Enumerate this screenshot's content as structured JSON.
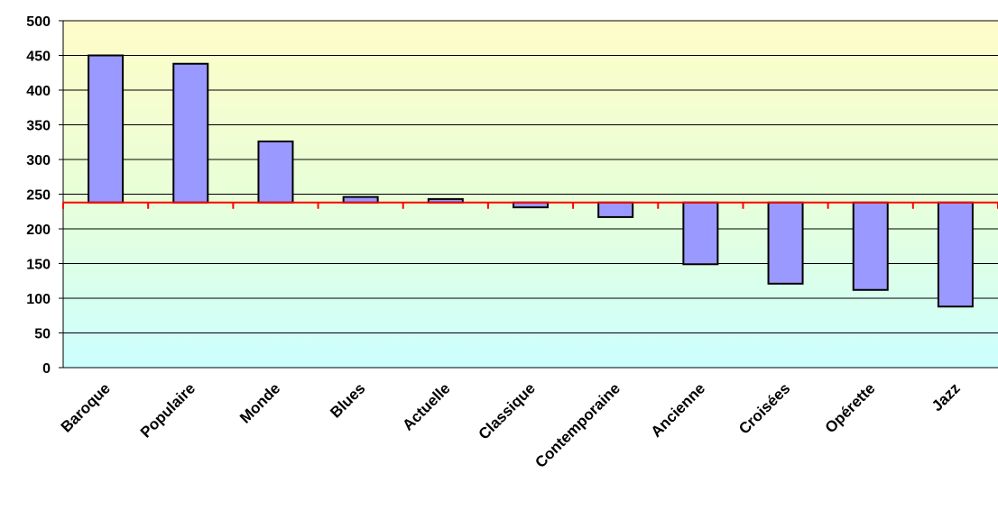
{
  "chart_data": {
    "type": "bar",
    "categories": [
      "Baroque",
      "Populaire",
      "Monde",
      "Blues",
      "Actuelle",
      "Classique",
      "Contemporaine",
      "Ancienne",
      "Croisées",
      "Opérette",
      "Jazz"
    ],
    "values": [
      450,
      438,
      326,
      246,
      243,
      231,
      217,
      149,
      121,
      112,
      88
    ],
    "baseline": 238,
    "ylim": [
      0,
      500
    ],
    "yticks": [
      0,
      50,
      100,
      150,
      200,
      250,
      300,
      350,
      400,
      450,
      500
    ],
    "title": "",
    "xlabel": "",
    "ylabel": "",
    "grid": true,
    "colors": {
      "bar_fill": "#9999ff",
      "bar_stroke": "#000000",
      "baseline": "#ff0000",
      "gradient_top": "#fffcc8",
      "gradient_mid": "#e8ffd8",
      "gradient_bottom": "#ccffff",
      "gridline": "#000000"
    }
  }
}
